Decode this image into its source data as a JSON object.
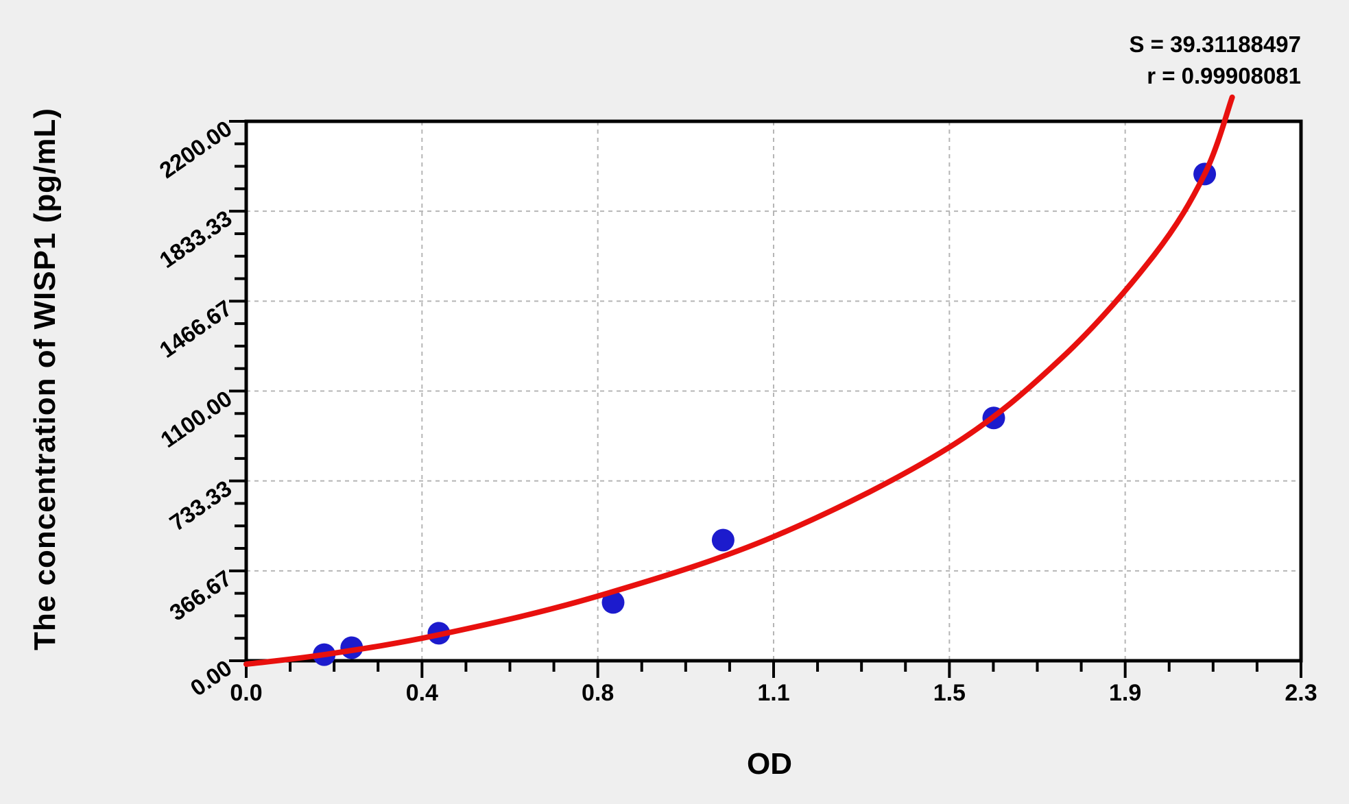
{
  "stats": {
    "s_line": "S = 39.31188497",
    "r_line": "r = 0.99908081"
  },
  "chart_data": {
    "type": "scatter",
    "title": "",
    "xlabel": "OD",
    "ylabel": "The concentration of WISP1 (pg/mL)",
    "grid": true,
    "legend": "none",
    "x_axis": {
      "min": 0,
      "max": 2.3,
      "major_divisions": 6,
      "minor_per_major": 4,
      "tick_labels": [
        "0.0",
        "0.4",
        "0.8",
        "1.1",
        "1.5",
        "1.9",
        "2.3"
      ]
    },
    "y_axis": {
      "min": 0,
      "max": 2200,
      "major_divisions": 6,
      "minor_per_major": 4,
      "tick_labels": [
        "0.00",
        "366.67",
        "733.33",
        "1100.00",
        "1466.67",
        "1833.33",
        "2200.00"
      ]
    },
    "points": [
      {
        "od": 0.17,
        "conc": 25
      },
      {
        "od": 0.23,
        "conc": 53
      },
      {
        "od": 0.42,
        "conc": 112
      },
      {
        "od": 0.8,
        "conc": 238
      },
      {
        "od": 1.04,
        "conc": 492
      },
      {
        "od": 1.63,
        "conc": 990
      },
      {
        "od": 2.09,
        "conc": 1985
      }
    ],
    "fit_curve": [
      [
        0.0,
        -14
      ],
      [
        0.17,
        25
      ],
      [
        0.42,
        106
      ],
      [
        0.76,
        260
      ],
      [
        1.15,
        506
      ],
      [
        1.53,
        867
      ],
      [
        1.78,
        1238
      ],
      [
        1.98,
        1655
      ],
      [
        2.09,
        1985
      ],
      [
        2.15,
        2298
      ]
    ]
  },
  "colors": {
    "background": "#efefef",
    "plot_background": "#ffffff",
    "axis": "#000000",
    "grid": "#b5b5b5",
    "curve": "#e8100e",
    "points": "#1c1bcd",
    "text": "#000000"
  }
}
